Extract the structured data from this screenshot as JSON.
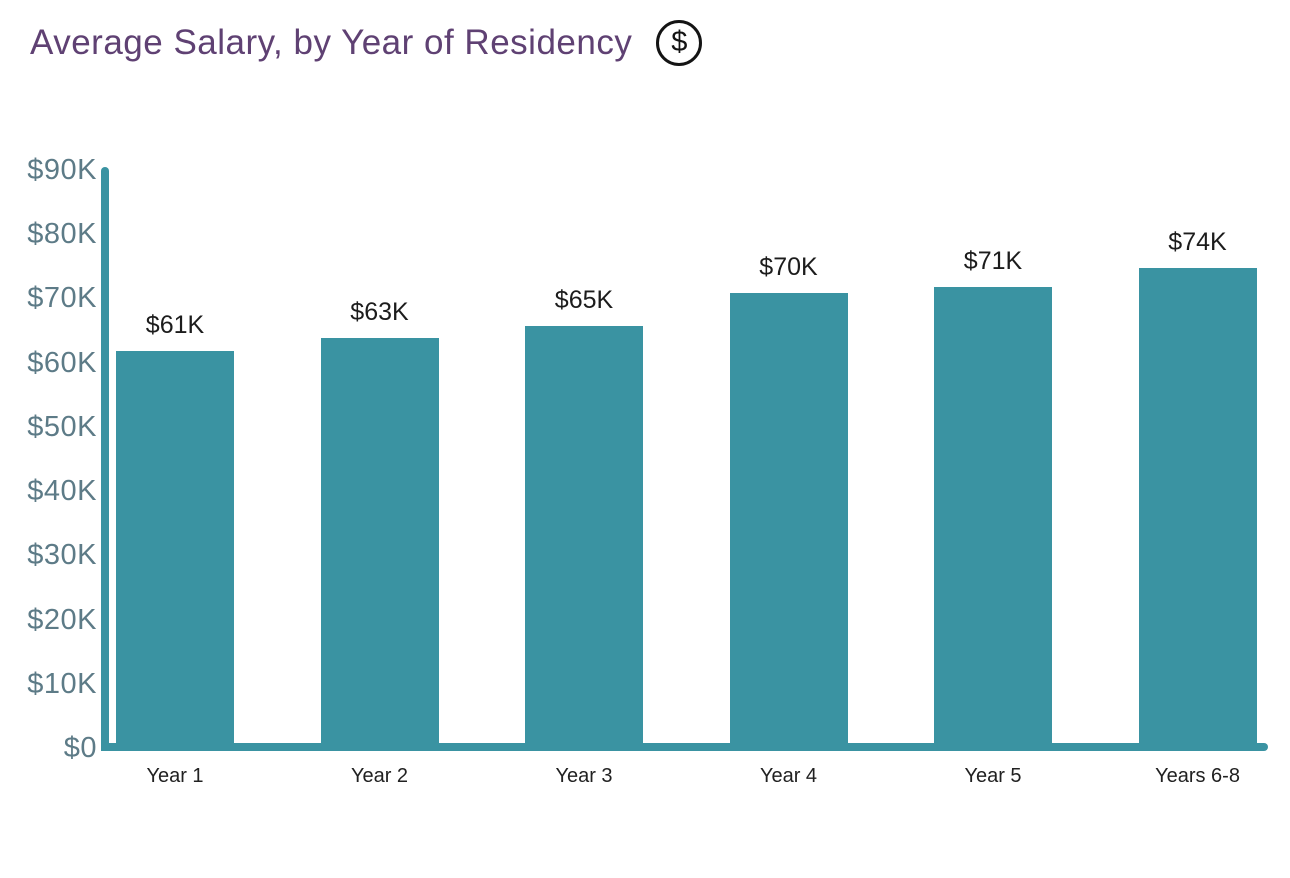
{
  "header": {
    "title": "Average Salary, by Year of Residency",
    "icon": "dollar-circle-icon",
    "icon_glyph": "$"
  },
  "colors": {
    "bar": "#3A93A2",
    "axis": "#3A93A2",
    "y_tick_label": "#5D7B87",
    "title": "#5F4173",
    "data_label": "#1c1c1c",
    "x_label": "#212121",
    "background": "#ffffff"
  },
  "chart_data": {
    "type": "bar",
    "title": "Average Salary, by Year of Residency",
    "categories": [
      "Year 1",
      "Year 2",
      "Year 3",
      "Year 4",
      "Year 5",
      "Years 6-8"
    ],
    "values": [
      61,
      63,
      65,
      70,
      71,
      74
    ],
    "value_labels": [
      "$61K",
      "$63K",
      "$65K",
      "$70K",
      "$71K",
      "$74K"
    ],
    "unit": "USD thousands",
    "xlabel": "",
    "ylabel": "",
    "ylim": [
      0,
      90
    ],
    "y_tick_values": [
      90,
      80,
      70,
      60,
      50,
      40,
      30,
      20,
      10,
      0
    ],
    "y_tick_labels": [
      "$90K",
      "$80K",
      "$70K",
      "$60K",
      "$50K",
      "$40K",
      "$30K",
      "$20K",
      "$10K",
      "$0"
    ],
    "grid": false,
    "legend": null,
    "bar_color": "#3A93A2"
  }
}
